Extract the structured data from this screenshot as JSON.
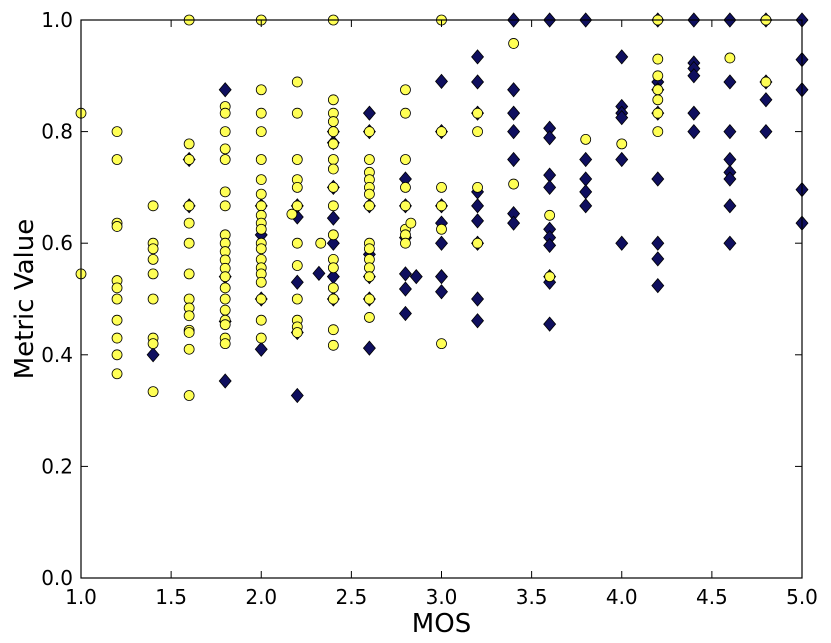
{
  "chart_data": {
    "type": "scatter",
    "xlabel": "MOS",
    "ylabel": "Metric Value",
    "xlim": [
      1.0,
      5.0
    ],
    "ylim": [
      0.0,
      1.0
    ],
    "xticks": [
      "1.0",
      "1.5",
      "2.0",
      "2.5",
      "3.0",
      "3.5",
      "4.0",
      "4.5",
      "5.0"
    ],
    "yticks": [
      "0.0",
      "0.2",
      "0.4",
      "0.6",
      "0.8",
      "1.0"
    ],
    "grid": false,
    "legend": "none",
    "series": [
      {
        "marker": "diamond",
        "color": "#0f0f5e",
        "points": [
          [
            1.4,
            0.4
          ],
          [
            1.6,
            0.75
          ],
          [
            1.6,
            0.667
          ],
          [
            1.8,
            0.875
          ],
          [
            1.8,
            0.353
          ],
          [
            1.8,
            0.54
          ],
          [
            1.8,
            0.46
          ],
          [
            2.0,
            0.41
          ],
          [
            2.0,
            0.615
          ],
          [
            2.0,
            0.667
          ],
          [
            2.0,
            0.5
          ],
          [
            2.2,
            0.327
          ],
          [
            2.2,
            0.53
          ],
          [
            2.2,
            0.647
          ],
          [
            2.2,
            0.667
          ],
          [
            2.2,
            0.44
          ],
          [
            2.32,
            0.546
          ],
          [
            2.4,
            0.7
          ],
          [
            2.4,
            0.645
          ],
          [
            2.4,
            0.78
          ],
          [
            2.4,
            0.6
          ],
          [
            2.4,
            0.54
          ],
          [
            2.4,
            0.5
          ],
          [
            2.4,
            0.8
          ],
          [
            2.6,
            0.833
          ],
          [
            2.6,
            0.8
          ],
          [
            2.6,
            0.667
          ],
          [
            2.6,
            0.58
          ],
          [
            2.6,
            0.54
          ],
          [
            2.6,
            0.5
          ],
          [
            2.6,
            0.412
          ],
          [
            2.8,
            0.715
          ],
          [
            2.8,
            0.667
          ],
          [
            2.8,
            0.61
          ],
          [
            2.8,
            0.545
          ],
          [
            2.8,
            0.518
          ],
          [
            2.8,
            0.474
          ],
          [
            2.86,
            0.54
          ],
          [
            3.0,
            0.89
          ],
          [
            3.0,
            0.8
          ],
          [
            3.0,
            0.667
          ],
          [
            3.0,
            0.636
          ],
          [
            3.0,
            0.6
          ],
          [
            3.0,
            0.54
          ],
          [
            3.0,
            0.513
          ],
          [
            3.2,
            0.934
          ],
          [
            3.2,
            0.889
          ],
          [
            3.2,
            0.833
          ],
          [
            3.2,
            0.692
          ],
          [
            3.2,
            0.667
          ],
          [
            3.2,
            0.64
          ],
          [
            3.2,
            0.6
          ],
          [
            3.2,
            0.5
          ],
          [
            3.2,
            0.461
          ],
          [
            3.4,
            1.0
          ],
          [
            3.4,
            0.875
          ],
          [
            3.4,
            0.833
          ],
          [
            3.4,
            0.8
          ],
          [
            3.4,
            0.75
          ],
          [
            3.4,
            0.653
          ],
          [
            3.4,
            0.636
          ],
          [
            3.6,
            1.0
          ],
          [
            3.6,
            0.806
          ],
          [
            3.6,
            0.789
          ],
          [
            3.6,
            0.722
          ],
          [
            3.6,
            0.7
          ],
          [
            3.6,
            0.625
          ],
          [
            3.6,
            0.61
          ],
          [
            3.6,
            0.596
          ],
          [
            3.6,
            0.54
          ],
          [
            3.6,
            0.53
          ],
          [
            3.6,
            0.455
          ],
          [
            3.8,
            1.0
          ],
          [
            3.8,
            0.75
          ],
          [
            3.8,
            0.715
          ],
          [
            3.8,
            0.692
          ],
          [
            3.8,
            0.667
          ],
          [
            4.0,
            0.934
          ],
          [
            4.0,
            0.845
          ],
          [
            4.0,
            0.833
          ],
          [
            4.0,
            0.825
          ],
          [
            4.0,
            0.75
          ],
          [
            4.0,
            0.6
          ],
          [
            4.2,
            1.0
          ],
          [
            4.2,
            0.889
          ],
          [
            4.2,
            0.875
          ],
          [
            4.2,
            0.833
          ],
          [
            4.2,
            0.715
          ],
          [
            4.2,
            0.6
          ],
          [
            4.2,
            0.572
          ],
          [
            4.2,
            0.524
          ],
          [
            4.4,
            1.0
          ],
          [
            4.4,
            0.923
          ],
          [
            4.4,
            0.913
          ],
          [
            4.4,
            0.9
          ],
          [
            4.4,
            0.833
          ],
          [
            4.4,
            0.8
          ],
          [
            4.6,
            1.0
          ],
          [
            4.6,
            0.889
          ],
          [
            4.6,
            0.8
          ],
          [
            4.6,
            0.75
          ],
          [
            4.6,
            0.727
          ],
          [
            4.6,
            0.715
          ],
          [
            4.6,
            0.667
          ],
          [
            4.6,
            0.6
          ],
          [
            4.8,
            1.0
          ],
          [
            4.8,
            0.889
          ],
          [
            4.8,
            0.857
          ],
          [
            4.8,
            0.8
          ],
          [
            5.0,
            1.0
          ],
          [
            5.0,
            0.929
          ],
          [
            5.0,
            0.875
          ],
          [
            5.0,
            0.696
          ],
          [
            5.0,
            0.636
          ]
        ]
      },
      {
        "marker": "circle",
        "color": "#ffff55",
        "points": [
          [
            1.0,
            0.833
          ],
          [
            1.0,
            0.545
          ],
          [
            1.2,
            0.8
          ],
          [
            1.2,
            0.75
          ],
          [
            1.2,
            0.636
          ],
          [
            1.2,
            0.63
          ],
          [
            1.2,
            0.533
          ],
          [
            1.2,
            0.52
          ],
          [
            1.2,
            0.5
          ],
          [
            1.2,
            0.462
          ],
          [
            1.2,
            0.43
          ],
          [
            1.2,
            0.4
          ],
          [
            1.2,
            0.366
          ],
          [
            1.4,
            0.667
          ],
          [
            1.4,
            0.6
          ],
          [
            1.4,
            0.59
          ],
          [
            1.4,
            0.571
          ],
          [
            1.4,
            0.545
          ],
          [
            1.4,
            0.5
          ],
          [
            1.4,
            0.43
          ],
          [
            1.4,
            0.42
          ],
          [
            1.4,
            0.334
          ],
          [
            1.6,
            1.0
          ],
          [
            1.6,
            0.778
          ],
          [
            1.6,
            0.75
          ],
          [
            1.6,
            0.667
          ],
          [
            1.6,
            0.636
          ],
          [
            1.6,
            0.6
          ],
          [
            1.6,
            0.545
          ],
          [
            1.6,
            0.5
          ],
          [
            1.6,
            0.484
          ],
          [
            1.6,
            0.47
          ],
          [
            1.6,
            0.444
          ],
          [
            1.6,
            0.44
          ],
          [
            1.6,
            0.41
          ],
          [
            1.6,
            0.327
          ],
          [
            1.8,
            0.845
          ],
          [
            1.8,
            0.833
          ],
          [
            1.8,
            0.8
          ],
          [
            1.8,
            0.769
          ],
          [
            1.8,
            0.75
          ],
          [
            1.8,
            0.692
          ],
          [
            1.8,
            0.667
          ],
          [
            1.8,
            0.615
          ],
          [
            1.8,
            0.6
          ],
          [
            1.8,
            0.585
          ],
          [
            1.8,
            0.57
          ],
          [
            1.8,
            0.555
          ],
          [
            1.8,
            0.54
          ],
          [
            1.8,
            0.52
          ],
          [
            1.8,
            0.5
          ],
          [
            1.8,
            0.48
          ],
          [
            1.8,
            0.462
          ],
          [
            1.8,
            0.454
          ],
          [
            1.8,
            0.43
          ],
          [
            1.8,
            0.42
          ],
          [
            2.0,
            1.0
          ],
          [
            2.0,
            0.875
          ],
          [
            2.0,
            0.833
          ],
          [
            2.0,
            0.8
          ],
          [
            2.0,
            0.75
          ],
          [
            2.0,
            0.714
          ],
          [
            2.0,
            0.688
          ],
          [
            2.0,
            0.667
          ],
          [
            2.0,
            0.65
          ],
          [
            2.0,
            0.636
          ],
          [
            2.0,
            0.625
          ],
          [
            2.0,
            0.6
          ],
          [
            2.0,
            0.59
          ],
          [
            2.0,
            0.571
          ],
          [
            2.0,
            0.556
          ],
          [
            2.0,
            0.545
          ],
          [
            2.0,
            0.53
          ],
          [
            2.0,
            0.5
          ],
          [
            2.0,
            0.462
          ],
          [
            2.0,
            0.43
          ],
          [
            2.17,
            0.652
          ],
          [
            2.2,
            0.889
          ],
          [
            2.2,
            0.833
          ],
          [
            2.2,
            0.75
          ],
          [
            2.2,
            0.714
          ],
          [
            2.2,
            0.7
          ],
          [
            2.2,
            0.667
          ],
          [
            2.2,
            0.6
          ],
          [
            2.2,
            0.56
          ],
          [
            2.2,
            0.5
          ],
          [
            2.2,
            0.462
          ],
          [
            2.2,
            0.45
          ],
          [
            2.2,
            0.44
          ],
          [
            2.33,
            0.6
          ],
          [
            2.4,
            1.0
          ],
          [
            2.4,
            0.857
          ],
          [
            2.4,
            0.833
          ],
          [
            2.4,
            0.818
          ],
          [
            2.4,
            0.8
          ],
          [
            2.4,
            0.778
          ],
          [
            2.4,
            0.75
          ],
          [
            2.4,
            0.733
          ],
          [
            2.4,
            0.7
          ],
          [
            2.4,
            0.667
          ],
          [
            2.4,
            0.615
          ],
          [
            2.4,
            0.571
          ],
          [
            2.4,
            0.556
          ],
          [
            2.4,
            0.52
          ],
          [
            2.4,
            0.5
          ],
          [
            2.4,
            0.445
          ],
          [
            2.4,
            0.417
          ],
          [
            2.6,
            0.8
          ],
          [
            2.6,
            0.75
          ],
          [
            2.6,
            0.727
          ],
          [
            2.6,
            0.714
          ],
          [
            2.6,
            0.7
          ],
          [
            2.6,
            0.688
          ],
          [
            2.6,
            0.667
          ],
          [
            2.6,
            0.6
          ],
          [
            2.6,
            0.59
          ],
          [
            2.6,
            0.571
          ],
          [
            2.6,
            0.556
          ],
          [
            2.6,
            0.54
          ],
          [
            2.6,
            0.5
          ],
          [
            2.6,
            0.467
          ],
          [
            2.8,
            0.875
          ],
          [
            2.8,
            0.833
          ],
          [
            2.8,
            0.75
          ],
          [
            2.8,
            0.7
          ],
          [
            2.8,
            0.667
          ],
          [
            2.8,
            0.625
          ],
          [
            2.8,
            0.615
          ],
          [
            2.8,
            0.6
          ],
          [
            2.83,
            0.636
          ],
          [
            3.0,
            1.0
          ],
          [
            3.0,
            0.8
          ],
          [
            3.0,
            0.7
          ],
          [
            3.0,
            0.667
          ],
          [
            3.0,
            0.625
          ],
          [
            3.0,
            0.42
          ],
          [
            3.2,
            0.833
          ],
          [
            3.2,
            0.8
          ],
          [
            3.2,
            0.7
          ],
          [
            3.2,
            0.6
          ],
          [
            3.4,
            0.958
          ],
          [
            3.4,
            0.706
          ],
          [
            3.6,
            0.65
          ],
          [
            3.6,
            0.54
          ],
          [
            3.8,
            0.786
          ],
          [
            4.0,
            0.778
          ],
          [
            4.2,
            1.0
          ],
          [
            4.2,
            0.93
          ],
          [
            4.2,
            0.9
          ],
          [
            4.2,
            0.875
          ],
          [
            4.2,
            0.857
          ],
          [
            4.2,
            0.833
          ],
          [
            4.2,
            0.8
          ],
          [
            4.6,
            0.932
          ],
          [
            4.8,
            1.0
          ],
          [
            4.8,
            0.889
          ]
        ]
      }
    ]
  }
}
